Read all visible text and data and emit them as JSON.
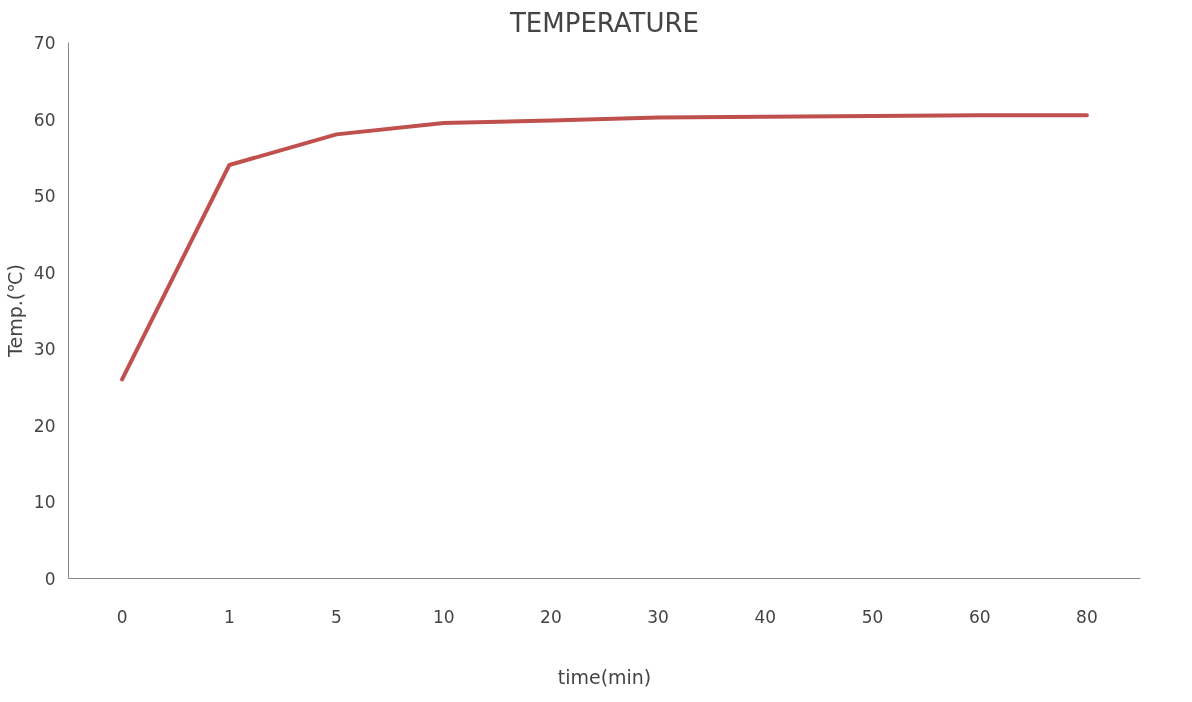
{
  "chart_data": {
    "type": "line",
    "title": "TEMPERATURE",
    "xlabel": "time(min)",
    "ylabel": "Temp.(℃)",
    "categories": [
      "0",
      "1",
      "5",
      "10",
      "20",
      "30",
      "40",
      "50",
      "60",
      "80"
    ],
    "series": [
      {
        "color": "#c0504d",
        "values": [
          26,
          54,
          58,
          59.5,
          59.8,
          60.2,
          60.3,
          60.4,
          60.5,
          60.5
        ]
      }
    ],
    "ylim": [
      0,
      70
    ],
    "yticks": [
      0,
      10,
      20,
      30,
      40,
      50,
      60,
      70
    ]
  }
}
